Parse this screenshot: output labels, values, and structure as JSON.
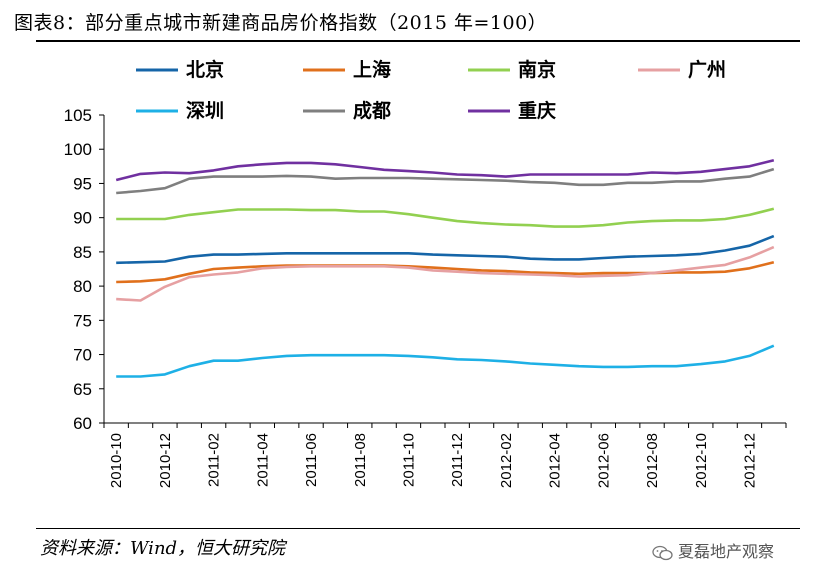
{
  "title": "图表8：部分重点城市新建商品房价格指数（2015 年=100）",
  "source": "资料来源：Wind，恒大研究院",
  "watermark": {
    "text": "夏磊地产观察",
    "icon": "wechat-icon"
  },
  "chart_data": {
    "type": "line",
    "ylim": [
      60,
      105
    ],
    "yticks": [
      60,
      65,
      70,
      75,
      80,
      85,
      90,
      95,
      100,
      105
    ],
    "x": [
      "2010-10",
      "2010-11",
      "2010-12",
      "2011-01",
      "2011-02",
      "2011-03",
      "2011-04",
      "2011-05",
      "2011-06",
      "2011-07",
      "2011-08",
      "2011-09",
      "2011-10",
      "2011-11",
      "2011-12",
      "2012-01",
      "2012-02",
      "2012-03",
      "2012-04",
      "2012-05",
      "2012-06",
      "2012-07",
      "2012-08",
      "2012-09",
      "2012-10",
      "2012-11",
      "2012-12",
      "2013-01"
    ],
    "xtick_labels": [
      "2010-10",
      "2010-12",
      "2011-02",
      "2011-04",
      "2011-06",
      "2011-08",
      "2011-10",
      "2011-12",
      "2012-02",
      "2012-04",
      "2012-06",
      "2012-08",
      "2012-10",
      "2012-12"
    ],
    "grid": false,
    "legend_position": "top",
    "series": [
      {
        "name": "北京",
        "color": "#1565a8",
        "values": [
          83.4,
          83.5,
          83.6,
          84.3,
          84.6,
          84.6,
          84.7,
          84.8,
          84.8,
          84.8,
          84.8,
          84.8,
          84.8,
          84.6,
          84.5,
          84.4,
          84.3,
          84.0,
          83.9,
          83.9,
          84.1,
          84.3,
          84.4,
          84.5,
          84.7,
          85.2,
          85.9,
          87.3
        ]
      },
      {
        "name": "上海",
        "color": "#e0701c",
        "values": [
          80.6,
          80.7,
          81.0,
          81.8,
          82.5,
          82.7,
          82.9,
          83.0,
          83.0,
          83.0,
          83.0,
          83.0,
          82.9,
          82.7,
          82.5,
          82.3,
          82.2,
          82.0,
          81.9,
          81.8,
          81.9,
          81.9,
          81.9,
          82.0,
          82.0,
          82.1,
          82.6,
          83.5
        ]
      },
      {
        "name": "南京",
        "color": "#92d050",
        "values": [
          89.8,
          89.8,
          89.8,
          90.4,
          90.8,
          91.2,
          91.2,
          91.2,
          91.1,
          91.1,
          90.9,
          90.9,
          90.5,
          90.0,
          89.5,
          89.2,
          89.0,
          88.9,
          88.7,
          88.7,
          88.9,
          89.3,
          89.5,
          89.6,
          89.6,
          89.8,
          90.4,
          91.3
        ]
      },
      {
        "name": "广州",
        "color": "#e6a0a2",
        "values": [
          78.1,
          77.9,
          79.9,
          81.3,
          81.7,
          82.0,
          82.6,
          82.8,
          82.9,
          82.9,
          82.9,
          82.9,
          82.7,
          82.3,
          82.1,
          81.9,
          81.8,
          81.7,
          81.6,
          81.4,
          81.5,
          81.6,
          81.9,
          82.3,
          82.7,
          83.1,
          84.2,
          85.7
        ]
      },
      {
        "name": "深圳",
        "color": "#1eb0e6",
        "values": [
          66.8,
          66.8,
          67.1,
          68.3,
          69.1,
          69.1,
          69.5,
          69.8,
          69.9,
          69.9,
          69.9,
          69.9,
          69.8,
          69.6,
          69.3,
          69.2,
          69.0,
          68.7,
          68.5,
          68.3,
          68.2,
          68.2,
          68.3,
          68.3,
          68.6,
          69.0,
          69.8,
          71.3
        ]
      },
      {
        "name": "成都",
        "color": "#7f7f7f",
        "values": [
          93.6,
          93.9,
          94.3,
          95.7,
          96.0,
          96.0,
          96.0,
          96.1,
          96.0,
          95.7,
          95.8,
          95.8,
          95.8,
          95.7,
          95.6,
          95.5,
          95.4,
          95.2,
          95.1,
          94.8,
          94.8,
          95.1,
          95.1,
          95.3,
          95.3,
          95.7,
          96.0,
          97.1
        ]
      },
      {
        "name": "重庆",
        "color": "#7030a0",
        "values": [
          95.5,
          96.4,
          96.6,
          96.5,
          96.9,
          97.5,
          97.8,
          98.0,
          98.0,
          97.8,
          97.4,
          97.0,
          96.8,
          96.6,
          96.3,
          96.2,
          96.0,
          96.3,
          96.3,
          96.3,
          96.3,
          96.3,
          96.6,
          96.5,
          96.7,
          97.1,
          97.5,
          98.4
        ]
      }
    ]
  }
}
